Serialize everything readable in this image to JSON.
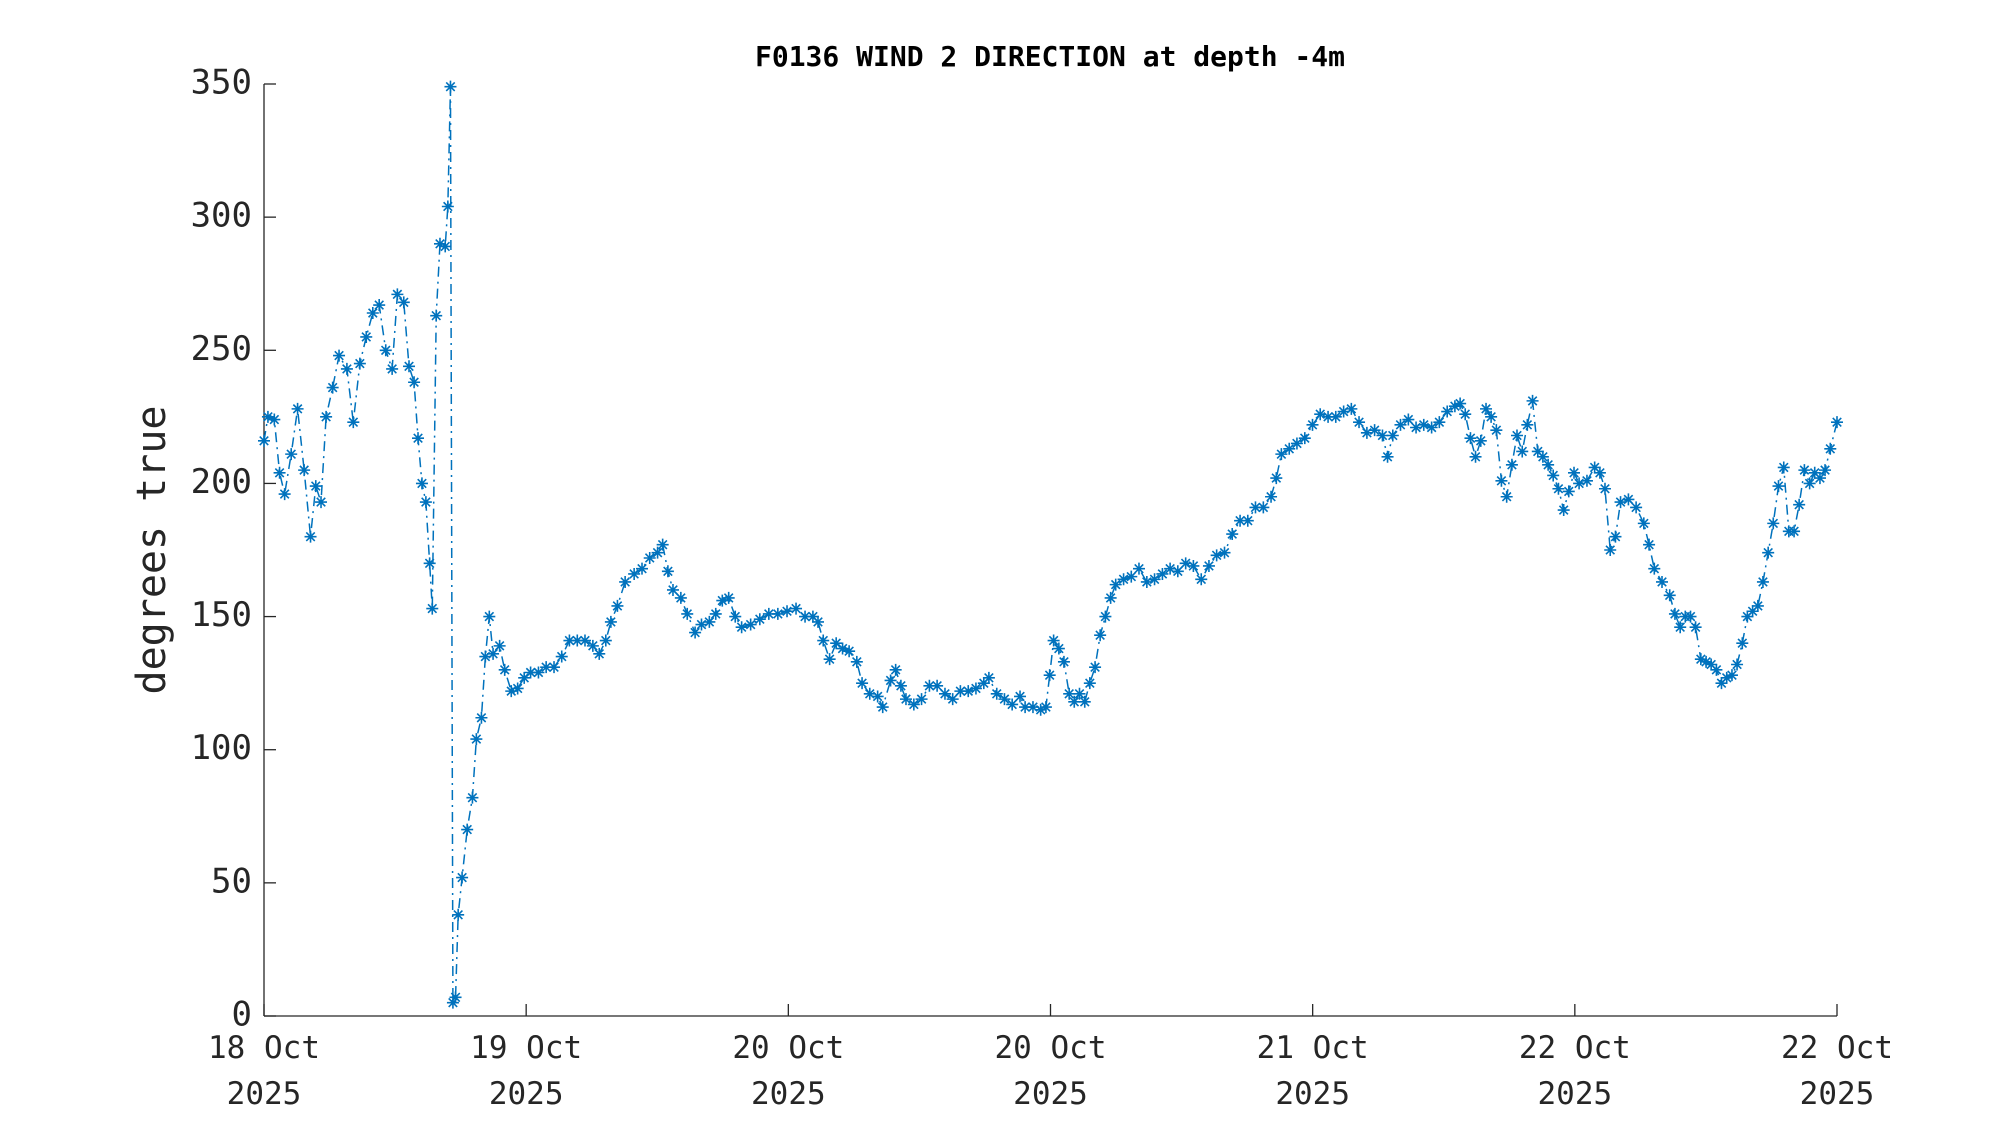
{
  "chart_data": {
    "type": "line",
    "title": "F0136 WIND 2 DIRECTION at depth -4m",
    "ylabel": "degrees true",
    "xlim": [
      0,
      96
    ],
    "ylim": [
      0,
      350
    ],
    "yticks": [
      0,
      50,
      100,
      150,
      200,
      250,
      300,
      350
    ],
    "xticks": [
      {
        "value": 0,
        "label": [
          "18 Oct",
          "2025"
        ]
      },
      {
        "value": 16,
        "label": [
          "19 Oct",
          "2025"
        ]
      },
      {
        "value": 32,
        "label": [
          "20 Oct",
          "2025"
        ]
      },
      {
        "value": 48,
        "label": [
          "20 Oct",
          "2025"
        ]
      },
      {
        "value": 64,
        "label": [
          "21 Oct",
          "2025"
        ]
      },
      {
        "value": 80,
        "label": [
          "22 Oct",
          "2025"
        ]
      },
      {
        "value": 96,
        "label": [
          "22 Oct",
          "2025"
        ]
      }
    ],
    "x": [
      0,
      0.24,
      0.63,
      0.95,
      1.26,
      1.66,
      2.05,
      2.45,
      2.84,
      3.16,
      3.48,
      3.79,
      4.19,
      4.58,
      5.06,
      5.45,
      5.85,
      6.24,
      6.64,
      7.03,
      7.43,
      7.82,
      8.14,
      8.53,
      8.85,
      9.16,
      9.4,
      9.64,
      9.88,
      10.11,
      10.27,
      10.51,
      10.74,
      11.06,
      11.22,
      11.38,
      11.53,
      11.69,
      11.85,
      12.09,
      12.4,
      12.72,
      12.96,
      13.27,
      13.51,
      13.75,
      13.98,
      14.38,
      14.69,
      15.09,
      15.48,
      15.88,
      16.27,
      16.75,
      17.22,
      17.7,
      18.17,
      18.64,
      19.12,
      19.59,
      20.07,
      20.46,
      20.86,
      21.17,
      21.57,
      22.04,
      22.59,
      23.07,
      23.54,
      24.02,
      24.33,
      24.65,
      24.96,
      25.44,
      25.83,
      26.31,
      26.7,
      27.18,
      27.57,
      27.97,
      28.36,
      28.76,
      29.15,
      29.7,
      30.26,
      30.81,
      31.36,
      31.92,
      32.47,
      33.02,
      33.5,
      33.81,
      34.13,
      34.52,
      34.92,
      35.31,
      35.71,
      36.18,
      36.5,
      36.97,
      37.45,
      37.76,
      38.24,
      38.55,
      38.87,
      39.18,
      39.66,
      40.13,
      40.61,
      41.08,
      41.56,
      42.03,
      42.5,
      42.98,
      43.45,
      43.93,
      44.24,
      44.72,
      45.19,
      45.66,
      46.14,
      46.45,
      46.93,
      47.4,
      47.72,
      47.95,
      48.19,
      48.51,
      48.82,
      49.14,
      49.45,
      49.77,
      50.09,
      50.4,
      50.72,
      51.03,
      51.35,
      51.67,
      51.98,
      52.46,
      52.93,
      53.4,
      53.88,
      54.35,
      54.83,
      55.3,
      55.77,
      56.25,
      56.72,
      57.2,
      57.67,
      58.14,
      58.62,
      59.09,
      59.57,
      60.04,
      60.51,
      60.99,
      61.46,
      61.78,
      62.09,
      62.57,
      63.04,
      63.52,
      63.99,
      64.46,
      64.94,
      65.41,
      65.89,
      66.36,
      66.83,
      67.31,
      67.78,
      68.26,
      68.57,
      68.89,
      69.36,
      69.84,
      70.31,
      70.78,
      71.26,
      71.73,
      72.21,
      72.68,
      73.0,
      73.31,
      73.63,
      73.94,
      74.26,
      74.58,
      74.89,
      75.21,
      75.52,
      75.84,
      76.16,
      76.47,
      76.79,
      77.1,
      77.42,
      77.74,
      78.05,
      78.37,
      78.68,
      79.0,
      79.32,
      79.63,
      79.95,
      80.26,
      80.74,
      81.21,
      81.53,
      81.84,
      82.16,
      82.48,
      82.79,
      83.27,
      83.74,
      84.21,
      84.53,
      84.85,
      85.32,
      85.79,
      86.11,
      86.43,
      86.74,
      87.06,
      87.37,
      87.69,
      88.01,
      88.32,
      88.64,
      88.95,
      89.27,
      89.59,
      89.9,
      90.22,
      90.53,
      90.85,
      91.17,
      91.48,
      91.8,
      92.11,
      92.43,
      92.75,
      93.06,
      93.38,
      93.69,
      94.01,
      94.33,
      94.64,
      94.96,
      95.27,
      95.59,
      96
    ],
    "series": [
      {
        "name": "wind direction",
        "color": "#0072bd",
        "values": [
          216,
          225,
          224,
          204,
          196,
          211,
          228,
          205,
          180,
          199,
          193,
          225,
          236,
          248,
          243,
          223,
          245,
          255,
          264,
          267,
          250,
          243,
          271,
          268,
          244,
          238,
          217,
          200,
          193,
          170,
          153,
          263,
          290,
          289,
          304,
          349,
          5,
          7,
          38,
          52,
          70,
          82,
          104,
          112,
          135,
          150,
          136,
          139,
          130,
          122,
          123,
          127,
          129,
          129,
          131,
          131,
          135,
          141,
          141,
          141,
          139,
          136,
          141,
          148,
          154,
          163,
          166,
          168,
          172,
          174,
          177,
          167,
          160,
          157,
          151,
          144,
          147,
          148,
          151,
          156,
          157,
          150,
          146,
          147,
          149,
          151,
          151,
          152,
          153,
          150,
          150,
          148,
          141,
          134,
          140,
          138,
          137,
          133,
          125,
          121,
          120,
          116,
          126,
          130,
          124,
          119,
          117,
          119,
          124,
          124,
          121,
          119,
          122,
          122,
          123,
          125,
          127,
          121,
          119,
          117,
          120,
          116,
          116,
          115,
          116,
          128,
          141,
          138,
          133,
          121,
          118,
          121,
          118,
          125,
          131,
          143,
          150,
          157,
          162,
          164,
          165,
          168,
          163,
          164,
          166,
          168,
          167,
          170,
          169,
          164,
          169,
          173,
          174,
          181,
          186,
          186,
          191,
          191,
          195,
          202,
          211,
          213,
          215,
          217,
          222,
          226,
          225,
          225,
          227,
          228,
          223,
          219,
          220,
          218,
          210,
          218,
          222,
          224,
          221,
          222,
          221,
          223,
          227,
          229,
          230,
          226,
          217,
          210,
          216,
          228,
          225,
          220,
          201,
          195,
          207,
          218,
          212,
          222,
          231,
          212,
          210,
          207,
          203,
          198,
          190,
          197,
          204,
          200,
          201,
          206,
          204,
          198,
          175,
          180,
          193,
          194,
          191,
          185,
          177,
          168,
          163,
          158,
          151,
          146,
          150,
          150,
          146,
          134,
          133,
          132,
          130,
          125,
          127,
          128,
          132,
          140,
          150,
          152,
          154,
          163,
          174,
          185,
          199,
          206,
          182,
          182,
          192,
          205,
          200,
          204,
          202,
          205,
          213,
          223
        ]
      }
    ]
  }
}
